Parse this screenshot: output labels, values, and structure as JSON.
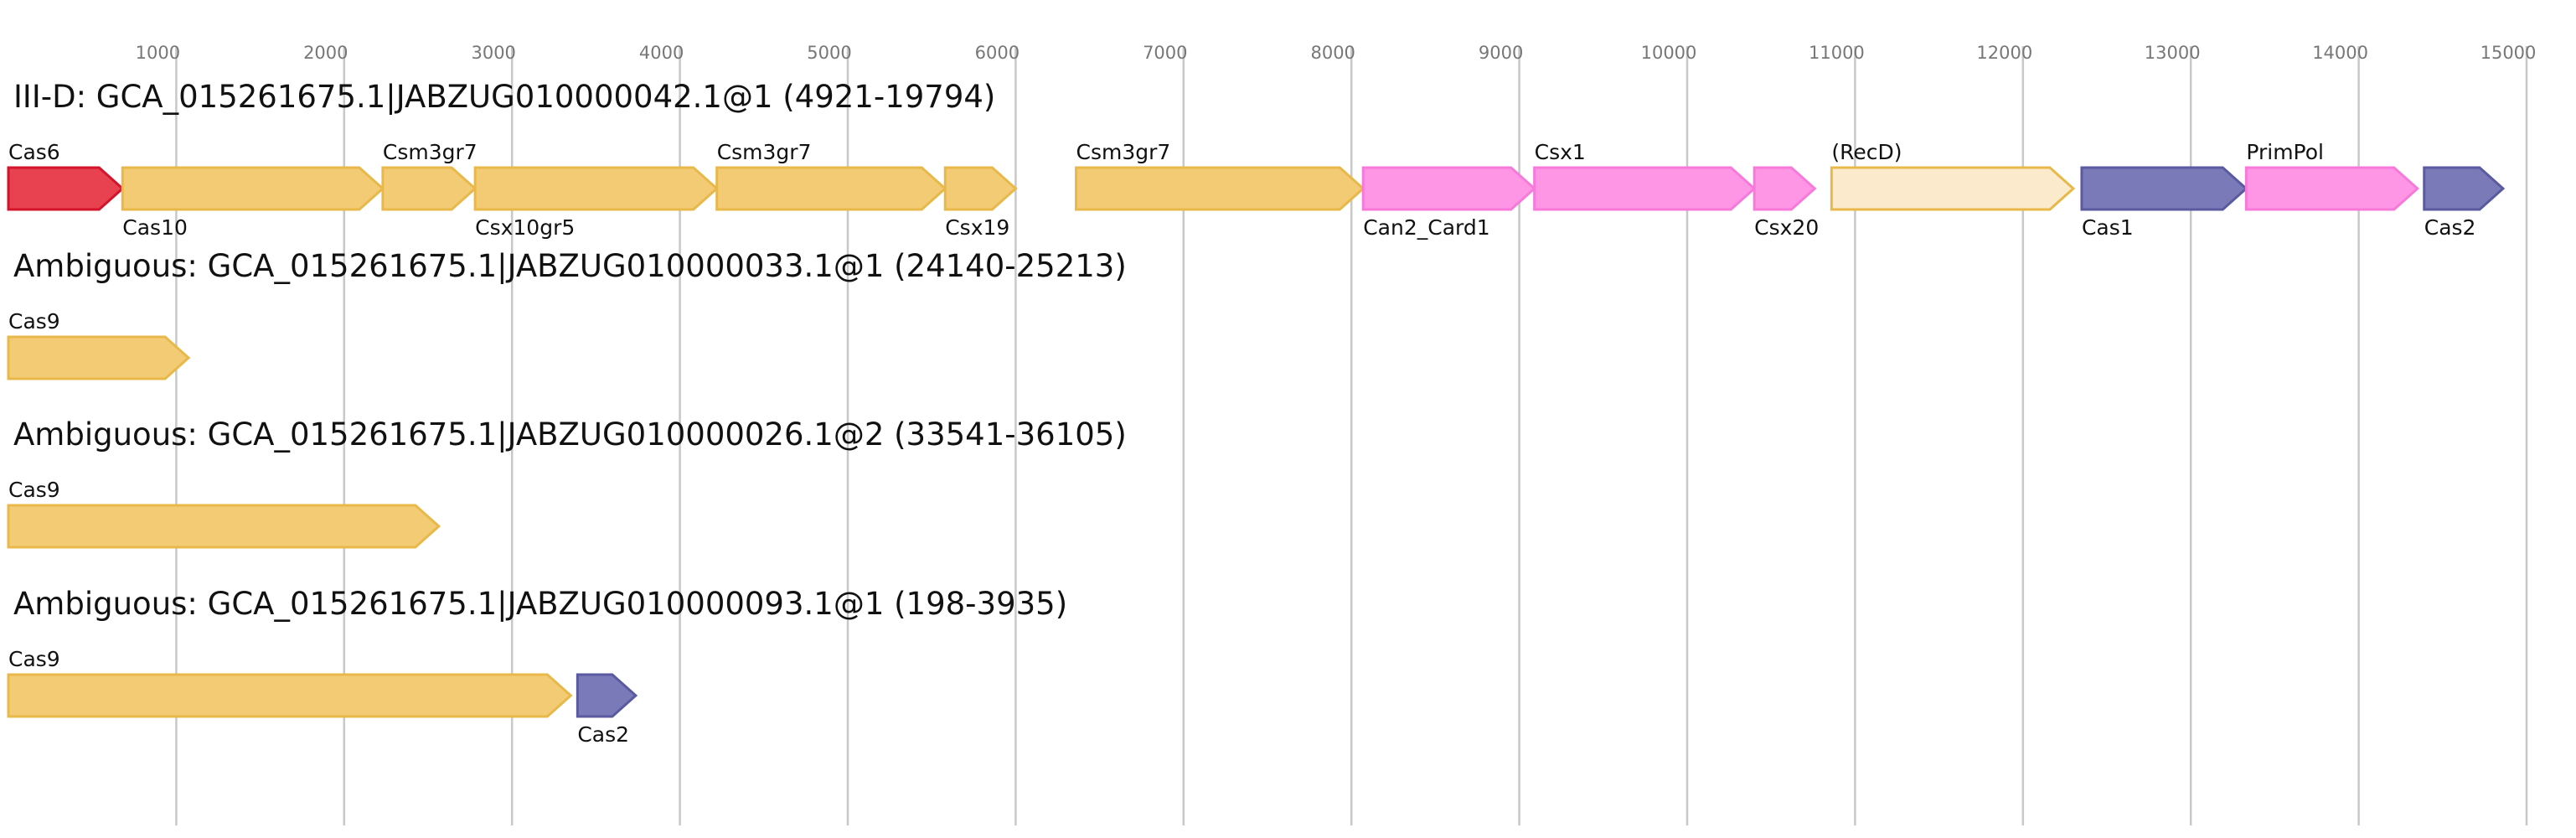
{
  "axis": {
    "ticks": [
      1000,
      2000,
      3000,
      4000,
      5000,
      6000,
      7000,
      8000,
      9000,
      10000,
      11000,
      12000,
      13000,
      14000,
      15000
    ],
    "range": [
      0,
      15000
    ]
  },
  "colors": {
    "red": "#e8414f",
    "red_stroke": "#d3142a",
    "gold": "#f2cb74",
    "gold_stroke": "#e8b94a",
    "pink": "#ff96e5",
    "pink_stroke": "#f77ada",
    "cream": "#fbeacb",
    "cream_stroke": "#e8b94a",
    "navy": "#7a7ab8",
    "navy_stroke": "#5a5aa0"
  },
  "tracks": [
    {
      "title": "III-D: GCA_015261675.1|JABZUG010000042.1@1 (4921-19794)",
      "genes": [
        {
          "name": "Cas6",
          "start": 0,
          "end": 680,
          "color": "red",
          "label_pos": "above"
        },
        {
          "name": "Cas10",
          "start": 680,
          "end": 2230,
          "color": "gold",
          "label_pos": "below"
        },
        {
          "name": "Csm3gr7",
          "start": 2230,
          "end": 2780,
          "color": "gold",
          "label_pos": "above"
        },
        {
          "name": "Csx10gr5",
          "start": 2780,
          "end": 4220,
          "color": "gold",
          "label_pos": "below"
        },
        {
          "name": "Csm3gr7",
          "start": 4220,
          "end": 5580,
          "color": "gold",
          "label_pos": "above"
        },
        {
          "name": "Csx19",
          "start": 5580,
          "end": 6000,
          "color": "gold",
          "label_pos": "below"
        },
        {
          "name": "Csm3gr7",
          "start": 6360,
          "end": 8070,
          "color": "gold",
          "label_pos": "above"
        },
        {
          "name": "Can2_Card1",
          "start": 8070,
          "end": 9090,
          "color": "pink",
          "label_pos": "below"
        },
        {
          "name": "Csx1",
          "start": 9090,
          "end": 10400,
          "color": "pink",
          "label_pos": "above"
        },
        {
          "name": "Csx20",
          "start": 10400,
          "end": 10760,
          "color": "pink",
          "label_pos": "below"
        },
        {
          "name": "(RecD)",
          "start": 10860,
          "end": 12300,
          "color": "cream",
          "label_pos": "above"
        },
        {
          "name": "Cas1",
          "start": 12350,
          "end": 13330,
          "color": "navy",
          "label_pos": "below"
        },
        {
          "name": "PrimPol",
          "start": 13330,
          "end": 14350,
          "color": "pink",
          "label_pos": "above"
        },
        {
          "name": "Cas2",
          "start": 14390,
          "end": 14860,
          "color": "navy",
          "label_pos": "below"
        }
      ]
    },
    {
      "title": "Ambiguous: GCA_015261675.1|JABZUG010000033.1@1 (24140-25213)",
      "genes": [
        {
          "name": "Cas9",
          "start": 0,
          "end": 1073,
          "color": "gold",
          "label_pos": "above"
        }
      ]
    },
    {
      "title": "Ambiguous: GCA_015261675.1|JABZUG010000026.1@2 (33541-36105)",
      "genes": [
        {
          "name": "Cas9",
          "start": 0,
          "end": 2564,
          "color": "gold",
          "label_pos": "above"
        }
      ]
    },
    {
      "title": "Ambiguous: GCA_015261675.1|JABZUG010000093.1@1 (198-3935)",
      "genes": [
        {
          "name": "Cas9",
          "start": 0,
          "end": 3350,
          "color": "gold",
          "label_pos": "above"
        },
        {
          "name": "Cas2",
          "start": 3390,
          "end": 3737,
          "color": "navy",
          "label_pos": "below"
        }
      ]
    }
  ]
}
